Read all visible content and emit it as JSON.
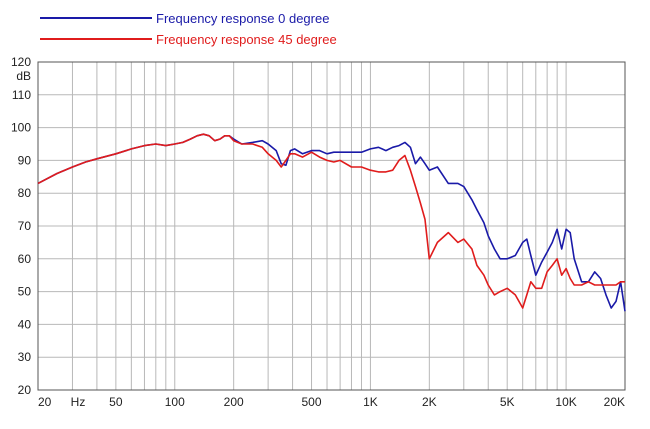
{
  "chart_data": {
    "type": "line",
    "title": "",
    "xlabel": "Hz",
    "ylabel": "dB",
    "x_scale": "log",
    "xlim": [
      20,
      20000
    ],
    "ylim": [
      20,
      120
    ],
    "grid": true,
    "legend_position": "top-left",
    "x_ticks": [
      {
        "value": 20,
        "label": "20"
      },
      {
        "value": 50,
        "label": "50"
      },
      {
        "value": 100,
        "label": "100"
      },
      {
        "value": 200,
        "label": "200"
      },
      {
        "value": 500,
        "label": "500"
      },
      {
        "value": 1000,
        "label": "1K"
      },
      {
        "value": 2000,
        "label": "2K"
      },
      {
        "value": 5000,
        "label": "5K"
      },
      {
        "value": 10000,
        "label": "10K"
      },
      {
        "value": 20000,
        "label": "20K"
      }
    ],
    "y_ticks": [
      20,
      30,
      40,
      50,
      60,
      70,
      80,
      90,
      100,
      110,
      120
    ],
    "series": [
      {
        "name": "Frequency response 0 degree",
        "color": "#1a1aa8",
        "x": [
          20,
          25,
          30,
          35,
          40,
          50,
          60,
          70,
          80,
          90,
          100,
          110,
          120,
          130,
          140,
          150,
          160,
          170,
          180,
          190,
          200,
          220,
          250,
          280,
          300,
          330,
          350,
          370,
          390,
          410,
          450,
          500,
          550,
          600,
          650,
          700,
          800,
          900,
          1000,
          1100,
          1200,
          1300,
          1400,
          1500,
          1600,
          1700,
          1800,
          1900,
          2000,
          2200,
          2500,
          2800,
          3000,
          3300,
          3500,
          3800,
          4000,
          4300,
          4600,
          5000,
          5500,
          6000,
          6300,
          6600,
          7000,
          7500,
          8000,
          8500,
          9000,
          9500,
          10000,
          10500,
          11000,
          12000,
          13000,
          14000,
          15000,
          16000,
          17000,
          18000,
          19000,
          20000
        ],
        "y": [
          83,
          86,
          88,
          89.5,
          90.5,
          92,
          93.5,
          94.5,
          95,
          94.5,
          95,
          95.5,
          96.5,
          97.5,
          98,
          97.5,
          96,
          96.5,
          97.5,
          97.5,
          96.5,
          95,
          95.5,
          96,
          95,
          93,
          89,
          88.5,
          93,
          93.5,
          92,
          93,
          93,
          92,
          92.5,
          92.5,
          92.5,
          92.5,
          93.5,
          94,
          93,
          94,
          94.5,
          95.5,
          94,
          89,
          91,
          89,
          87,
          88,
          83,
          83,
          82,
          78,
          75,
          71,
          67,
          63,
          60,
          60,
          61,
          65,
          66,
          61,
          55,
          59,
          62,
          65,
          69,
          63,
          69,
          68,
          60,
          53,
          53,
          56,
          54,
          49,
          45,
          47,
          53,
          44
        ]
      },
      {
        "name": "Frequency response 45 degree",
        "color": "#e01c1c",
        "x": [
          20,
          25,
          30,
          35,
          40,
          50,
          60,
          70,
          80,
          90,
          100,
          110,
          120,
          130,
          140,
          150,
          160,
          170,
          180,
          190,
          200,
          220,
          250,
          280,
          300,
          330,
          350,
          370,
          390,
          410,
          450,
          500,
          550,
          600,
          650,
          700,
          800,
          900,
          1000,
          1100,
          1200,
          1300,
          1400,
          1500,
          1600,
          1700,
          1800,
          1900,
          2000,
          2200,
          2500,
          2800,
          3000,
          3300,
          3500,
          3800,
          4000,
          4300,
          4600,
          5000,
          5500,
          6000,
          6300,
          6600,
          7000,
          7500,
          8000,
          8500,
          9000,
          9500,
          10000,
          10500,
          11000,
          12000,
          13000,
          14000,
          15000,
          16000,
          17000,
          18000,
          19000,
          20000
        ],
        "y": [
          83,
          86,
          88,
          89.5,
          90.5,
          92,
          93.5,
          94.5,
          95,
          94.5,
          95,
          95.5,
          96.5,
          97.5,
          98,
          97.5,
          96,
          96.5,
          97.5,
          97.5,
          96,
          95,
          95,
          94,
          92,
          90,
          88,
          90,
          92,
          92,
          91,
          92.5,
          91,
          90,
          89.5,
          90,
          88,
          88,
          87,
          86.5,
          86.5,
          87,
          90,
          91.5,
          87,
          82,
          77,
          72,
          60,
          65,
          68,
          65,
          66,
          63,
          58,
          55,
          52,
          49,
          50,
          51,
          49,
          45,
          49,
          53,
          51,
          51,
          56,
          58,
          60,
          55,
          57,
          54,
          52,
          52,
          53,
          52,
          52,
          52,
          52,
          52,
          53,
          53
        ]
      }
    ]
  }
}
